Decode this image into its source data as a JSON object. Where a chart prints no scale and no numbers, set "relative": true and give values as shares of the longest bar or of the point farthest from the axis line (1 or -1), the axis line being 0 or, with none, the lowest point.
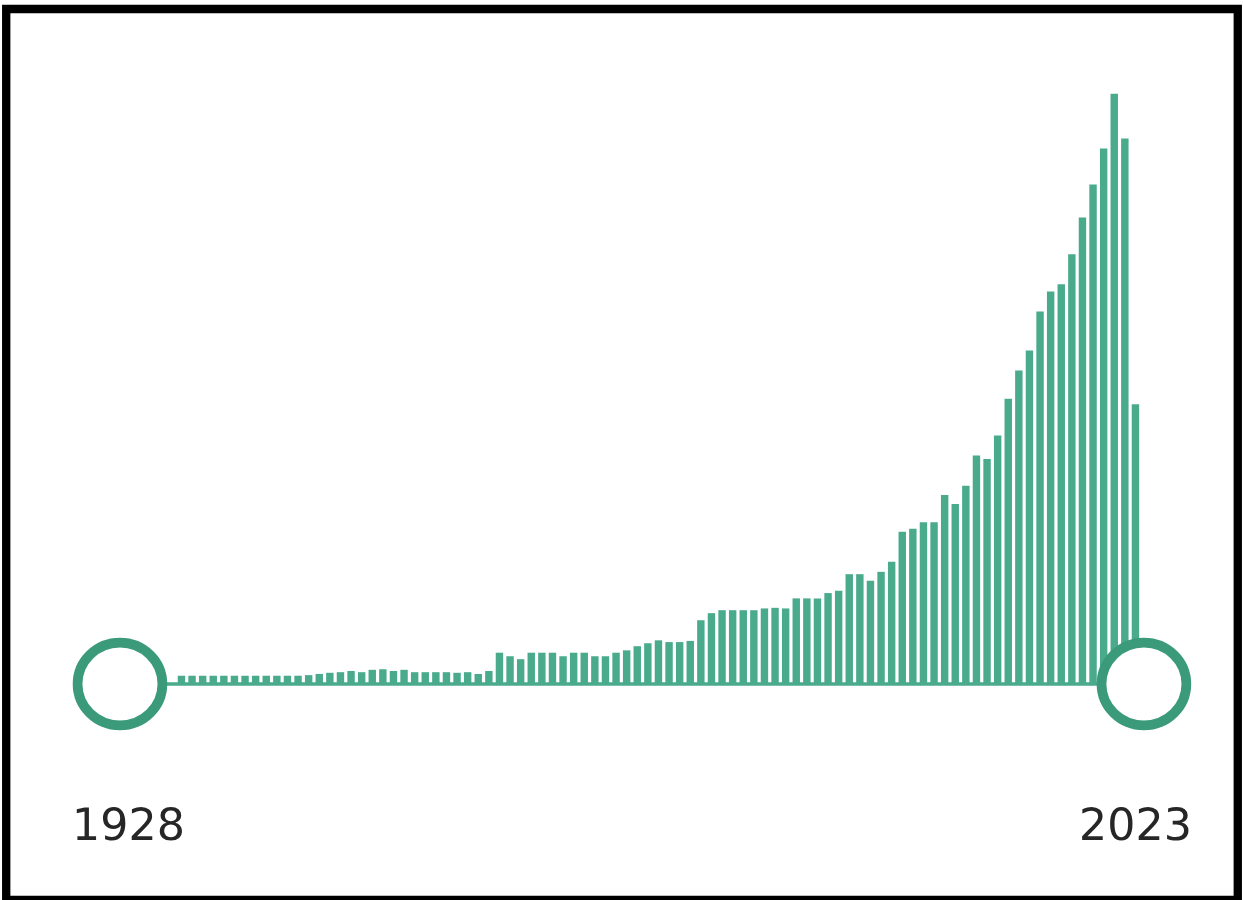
{
  "chart_data": {
    "type": "bar",
    "relative": true,
    "color": "#4aaa8c",
    "categories": [
      "1928",
      null,
      null,
      null,
      null,
      null,
      null,
      null,
      null,
      null,
      null,
      null,
      null,
      null,
      null,
      null,
      null,
      null,
      null,
      null,
      null,
      null,
      null,
      null,
      null,
      null,
      null,
      null,
      null,
      null,
      null,
      null,
      null,
      null,
      null,
      null,
      null,
      null,
      null,
      null,
      null,
      null,
      null,
      null,
      null,
      null,
      null,
      null,
      null,
      null,
      null,
      null,
      null,
      null,
      null,
      null,
      null,
      null,
      null,
      null,
      null,
      null,
      null,
      null,
      null,
      null,
      null,
      null,
      null,
      null,
      null,
      null,
      null,
      null,
      null,
      null,
      null,
      null,
      null,
      null,
      null,
      null,
      null,
      null,
      null,
      null,
      null,
      null,
      null,
      null,
      null,
      null,
      null,
      null,
      null,
      "2023"
    ],
    "values": [
      null,
      null,
      null,
      null,
      null,
      0.014,
      0.014,
      0.014,
      0.014,
      0.014,
      0.014,
      0.014,
      0.014,
      0.014,
      0.014,
      0.014,
      0.014,
      0.015,
      0.017,
      0.019,
      0.02,
      0.022,
      0.02,
      0.024,
      0.025,
      0.022,
      0.024,
      0.02,
      0.02,
      0.02,
      0.02,
      0.019,
      0.02,
      0.017,
      0.022,
      0.053,
      0.047,
      0.042,
      0.053,
      0.053,
      0.053,
      0.047,
      0.053,
      0.053,
      0.047,
      0.047,
      0.053,
      0.057,
      0.064,
      0.069,
      0.074,
      0.071,
      0.071,
      0.073,
      0.108,
      0.12,
      0.125,
      0.125,
      0.125,
      0.125,
      0.128,
      0.129,
      0.128,
      0.145,
      0.145,
      0.145,
      0.154,
      0.158,
      0.186,
      0.186,
      0.175,
      0.19,
      0.207,
      0.258,
      0.263,
      0.274,
      0.274,
      0.32,
      0.305,
      0.336,
      0.387,
      0.381,
      0.421,
      0.483,
      0.531,
      0.565,
      0.631,
      0.665,
      0.677,
      0.728,
      0.79,
      0.846,
      0.907,
      1.0,
      0.924,
      0.474
    ],
    "tick_labels": "x"
  }
}
